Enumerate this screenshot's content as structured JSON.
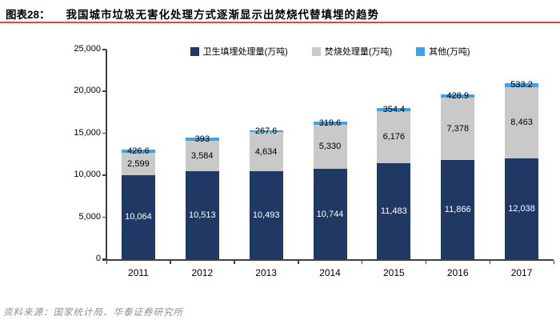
{
  "header": {
    "label": "图表28：",
    "title": "我国城市垃圾无害化处理方式逐渐显示出焚烧代替填埋的趋势"
  },
  "footer": {
    "source": "资料来源：国家统计局、华泰证券研究所"
  },
  "colors": {
    "landfill": "#1f3864",
    "incineration": "#c9c9c9",
    "other": "#43a2e4",
    "title_rule": "#e04b2e",
    "axis": "#404040",
    "source_text": "#8f8f8b"
  },
  "chart_data": {
    "type": "bar",
    "stacked": true,
    "title": "我国城市垃圾无害化处理方式逐渐显示出焚烧代替填埋的趋势",
    "categories": [
      "2011",
      "2012",
      "2013",
      "2014",
      "2015",
      "2016",
      "2017"
    ],
    "series": [
      {
        "key": "landfill",
        "name": "卫生填埋处理量(万吨)",
        "color_key": "landfill",
        "values": [
          10064,
          10513,
          10493,
          10744,
          11483,
          11866,
          12038
        ],
        "labels": [
          "10,064",
          "10,513",
          "10,493",
          "10,744",
          "11,483",
          "11,866",
          "12,038"
        ],
        "label_color": "#ffffff"
      },
      {
        "key": "incineration",
        "name": "焚烧处理量(万吨)",
        "color_key": "incineration",
        "values": [
          2599,
          3584,
          4634,
          5330,
          6176,
          7378,
          8463
        ],
        "labels": [
          "2,599",
          "3,584",
          "4,634",
          "5,330",
          "6,176",
          "7,378",
          "8,463"
        ],
        "label_color": "#000000"
      },
      {
        "key": "other",
        "name": "其他(万吨)",
        "color_key": "other",
        "values": [
          426.6,
          393,
          267.6,
          319.6,
          354.4,
          428.9,
          533.2
        ],
        "labels": [
          "426.6",
          "393",
          "267.6",
          "319.6",
          "354.4",
          "428.9",
          "533.2"
        ],
        "label_color": "#000000"
      }
    ],
    "xlabel": "",
    "ylabel": "",
    "ylim": [
      0,
      25000
    ],
    "ytick_interval": 5000,
    "ytick_labels": [
      "0",
      "5,000",
      "10,000",
      "15,000",
      "20,000",
      "25,000"
    ],
    "legend_position": "top",
    "grid": false
  }
}
